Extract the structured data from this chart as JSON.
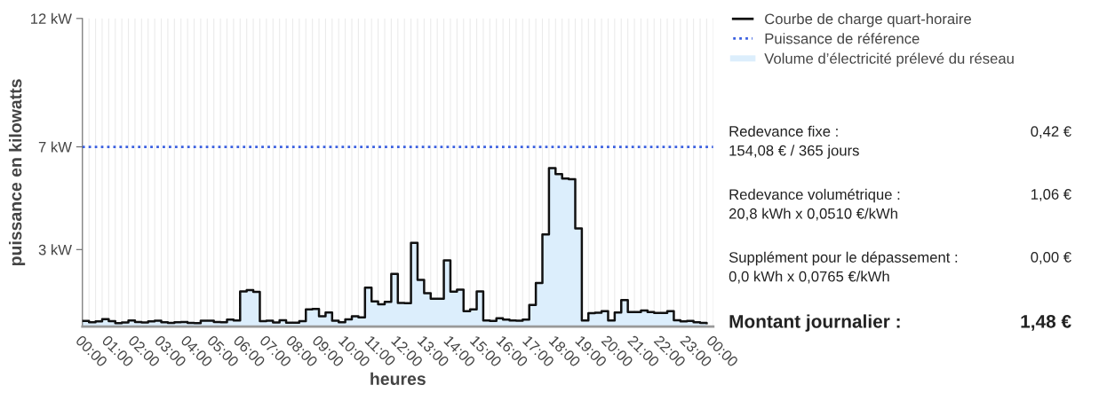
{
  "chart_data": {
    "type": "step",
    "ylabel": "puissance en kilowatts",
    "xlabel": "heures",
    "x": [
      0,
      0.25,
      0.5,
      0.75,
      1,
      1.25,
      1.5,
      1.75,
      2,
      2.25,
      2.5,
      2.75,
      3,
      3.25,
      3.5,
      3.75,
      4,
      4.25,
      4.5,
      4.75,
      5,
      5.25,
      5.5,
      5.75,
      6,
      6.25,
      6.5,
      6.75,
      7,
      7.25,
      7.5,
      7.75,
      8,
      8.25,
      8.5,
      8.75,
      9,
      9.25,
      9.5,
      9.75,
      10,
      10.25,
      10.5,
      10.75,
      11,
      11.25,
      11.5,
      11.75,
      12,
      12.25,
      12.5,
      12.75,
      13,
      13.25,
      13.5,
      13.75,
      14,
      14.25,
      14.5,
      14.75,
      15,
      15.25,
      15.5,
      15.75,
      16,
      16.25,
      16.5,
      16.75,
      17,
      17.25,
      17.5,
      17.75,
      18,
      18.25,
      18.5,
      18.75,
      19,
      19.25,
      19.5,
      19.75,
      20,
      20.25,
      20.5,
      20.75,
      21,
      21.25,
      21.5,
      21.75,
      22,
      22.25,
      22.5,
      22.75,
      23,
      23.25,
      23.5,
      23.75
    ],
    "series": [
      {
        "name": "Volume d’électricité prélevé du réseau",
        "type": "area",
        "color": "#dceefc",
        "values": [
          0.22,
          0.17,
          0.2,
          0.29,
          0.21,
          0.13,
          0.16,
          0.24,
          0.18,
          0.16,
          0.2,
          0.23,
          0.17,
          0.14,
          0.17,
          0.18,
          0.14,
          0.13,
          0.23,
          0.23,
          0.18,
          0.17,
          0.27,
          0.24,
          1.37,
          1.42,
          1.35,
          0.21,
          0.23,
          0.16,
          0.25,
          0.15,
          0.15,
          0.21,
          0.67,
          0.69,
          0.4,
          0.55,
          0.23,
          0.17,
          0.28,
          0.4,
          0.36,
          1.52,
          0.98,
          0.87,
          0.96,
          2.05,
          0.92,
          0.91,
          3.26,
          1.82,
          1.3,
          1.08,
          1.08,
          2.58,
          1.36,
          1.44,
          0.6,
          0.67,
          1.37,
          0.24,
          0.22,
          0.32,
          0.27,
          0.24,
          0.23,
          0.27,
          0.84,
          1.7,
          3.59,
          6.17,
          5.94,
          5.77,
          5.74,
          3.82,
          0.24,
          0.52,
          0.54,
          0.6,
          0.24,
          0.55,
          1.03,
          0.57,
          0.57,
          0.63,
          0.57,
          0.53,
          0.53,
          0.6,
          0.25,
          0.2,
          0.22,
          0.17,
          0.14,
          0.13
        ]
      },
      {
        "name": "Courbe de charge quart-horaire",
        "color": "#111111",
        "values": [
          0.22,
          0.17,
          0.2,
          0.29,
          0.21,
          0.13,
          0.16,
          0.24,
          0.18,
          0.16,
          0.2,
          0.23,
          0.17,
          0.14,
          0.17,
          0.18,
          0.14,
          0.13,
          0.23,
          0.23,
          0.18,
          0.17,
          0.27,
          0.24,
          1.37,
          1.42,
          1.35,
          0.21,
          0.23,
          0.16,
          0.25,
          0.15,
          0.15,
          0.21,
          0.67,
          0.69,
          0.4,
          0.55,
          0.23,
          0.17,
          0.28,
          0.4,
          0.36,
          1.52,
          0.98,
          0.87,
          0.96,
          2.05,
          0.92,
          0.91,
          3.26,
          1.82,
          1.3,
          1.08,
          1.08,
          2.58,
          1.36,
          1.44,
          0.6,
          0.67,
          1.37,
          0.24,
          0.22,
          0.32,
          0.27,
          0.24,
          0.23,
          0.27,
          0.84,
          1.7,
          3.59,
          6.17,
          5.94,
          5.77,
          5.74,
          3.82,
          0.24,
          0.52,
          0.54,
          0.6,
          0.24,
          0.55,
          1.03,
          0.57,
          0.57,
          0.63,
          0.57,
          0.53,
          0.53,
          0.6,
          0.25,
          0.2,
          0.22,
          0.17,
          0.14,
          0.13
        ]
      }
    ],
    "ref_lines": [
      {
        "axis": "y",
        "value": 7,
        "label": "Puissance de référence",
        "color": "#3a5fe0",
        "line_style": "dotted"
      }
    ],
    "xlim": [
      0,
      24
    ],
    "xticks": [
      {
        "value": 0,
        "label": "00:00"
      },
      {
        "value": 0.25,
        "label": null
      },
      {
        "value": 0.5,
        "label": null
      },
      {
        "value": 0.75,
        "label": null
      },
      {
        "value": 1,
        "label": "01:00"
      },
      {
        "value": 1.25,
        "label": null
      },
      {
        "value": 1.5,
        "label": null
      },
      {
        "value": 1.75,
        "label": null
      },
      {
        "value": 2,
        "label": "02:00"
      },
      {
        "value": 2.25,
        "label": null
      },
      {
        "value": 2.5,
        "label": null
      },
      {
        "value": 2.75,
        "label": null
      },
      {
        "value": 3,
        "label": "03:00"
      },
      {
        "value": 3.25,
        "label": null
      },
      {
        "value": 3.5,
        "label": null
      },
      {
        "value": 3.75,
        "label": null
      },
      {
        "value": 4,
        "label": "04:00"
      },
      {
        "value": 4.25,
        "label": null
      },
      {
        "value": 4.5,
        "label": null
      },
      {
        "value": 4.75,
        "label": null
      },
      {
        "value": 5,
        "label": "05:00"
      },
      {
        "value": 5.25,
        "label": null
      },
      {
        "value": 5.5,
        "label": null
      },
      {
        "value": 5.75,
        "label": null
      },
      {
        "value": 6,
        "label": "06:00"
      },
      {
        "value": 6.25,
        "label": null
      },
      {
        "value": 6.5,
        "label": null
      },
      {
        "value": 6.75,
        "label": null
      },
      {
        "value": 7,
        "label": "07:00"
      },
      {
        "value": 7.25,
        "label": null
      },
      {
        "value": 7.5,
        "label": null
      },
      {
        "value": 7.75,
        "label": null
      },
      {
        "value": 8,
        "label": "08:00"
      },
      {
        "value": 8.25,
        "label": null
      },
      {
        "value": 8.5,
        "label": null
      },
      {
        "value": 8.75,
        "label": null
      },
      {
        "value": 9,
        "label": "09:00"
      },
      {
        "value": 9.25,
        "label": null
      },
      {
        "value": 9.5,
        "label": null
      },
      {
        "value": 9.75,
        "label": null
      },
      {
        "value": 10,
        "label": "10:00"
      },
      {
        "value": 10.25,
        "label": null
      },
      {
        "value": 10.5,
        "label": null
      },
      {
        "value": 10.75,
        "label": null
      },
      {
        "value": 11,
        "label": "11:00"
      },
      {
        "value": 11.25,
        "label": null
      },
      {
        "value": 11.5,
        "label": null
      },
      {
        "value": 11.75,
        "label": null
      },
      {
        "value": 12,
        "label": "12:00"
      },
      {
        "value": 12.25,
        "label": null
      },
      {
        "value": 12.5,
        "label": null
      },
      {
        "value": 12.75,
        "label": null
      },
      {
        "value": 13,
        "label": "13:00"
      },
      {
        "value": 13.25,
        "label": null
      },
      {
        "value": 13.5,
        "label": null
      },
      {
        "value": 13.75,
        "label": null
      },
      {
        "value": 14,
        "label": "14:00"
      },
      {
        "value": 14.25,
        "label": null
      },
      {
        "value": 14.5,
        "label": null
      },
      {
        "value": 14.75,
        "label": null
      },
      {
        "value": 15,
        "label": "15:00"
      },
      {
        "value": 15.25,
        "label": null
      },
      {
        "value": 15.5,
        "label": null
      },
      {
        "value": 15.75,
        "label": null
      },
      {
        "value": 16,
        "label": "16:00"
      },
      {
        "value": 16.25,
        "label": null
      },
      {
        "value": 16.5,
        "label": null
      },
      {
        "value": 16.75,
        "label": null
      },
      {
        "value": 17,
        "label": "17:00"
      },
      {
        "value": 17.25,
        "label": null
      },
      {
        "value": 17.5,
        "label": null
      },
      {
        "value": 17.75,
        "label": null
      },
      {
        "value": 18,
        "label": "18:00"
      },
      {
        "value": 18.25,
        "label": null
      },
      {
        "value": 18.5,
        "label": null
      },
      {
        "value": 18.75,
        "label": null
      },
      {
        "value": 19,
        "label": "19:00"
      },
      {
        "value": 19.25,
        "label": null
      },
      {
        "value": 19.5,
        "label": null
      },
      {
        "value": 19.75,
        "label": null
      },
      {
        "value": 20,
        "label": "20:00"
      },
      {
        "value": 20.25,
        "label": null
      },
      {
        "value": 20.5,
        "label": null
      },
      {
        "value": 20.75,
        "label": null
      },
      {
        "value": 21,
        "label": "21:00"
      },
      {
        "value": 21.25,
        "label": null
      },
      {
        "value": 21.5,
        "label": null
      },
      {
        "value": 21.75,
        "label": null
      },
      {
        "value": 22,
        "label": "22:00"
      },
      {
        "value": 22.25,
        "label": null
      },
      {
        "value": 22.5,
        "label": null
      },
      {
        "value": 22.75,
        "label": null
      },
      {
        "value": 23,
        "label": "23:00"
      },
      {
        "value": 23.25,
        "label": null
      },
      {
        "value": 23.5,
        "label": null
      },
      {
        "value": 23.75,
        "label": null
      },
      {
        "value": 24,
        "label": "00:00"
      }
    ],
    "ylim": [
      0,
      12
    ],
    "yticks": [
      {
        "value": 3,
        "label": "3 kW"
      },
      {
        "value": 7,
        "label": "7 kW"
      },
      {
        "value": 12,
        "label": "12 kW"
      }
    ],
    "grid": "x",
    "legend": "top right",
    "annotations": [
      "Redevance fixe :\n154,08 € / 365 jours",
      "0,42 €",
      "Redevance volumétrique :\n20,8 kWh x 0,0510 €/kWh",
      "1,06 €",
      "Supplément pour le dépassement :\n0,0 kWh x 0,0765 €/kWh",
      "0,00 €",
      "Montant journalier :",
      "1,48 €"
    ]
  }
}
